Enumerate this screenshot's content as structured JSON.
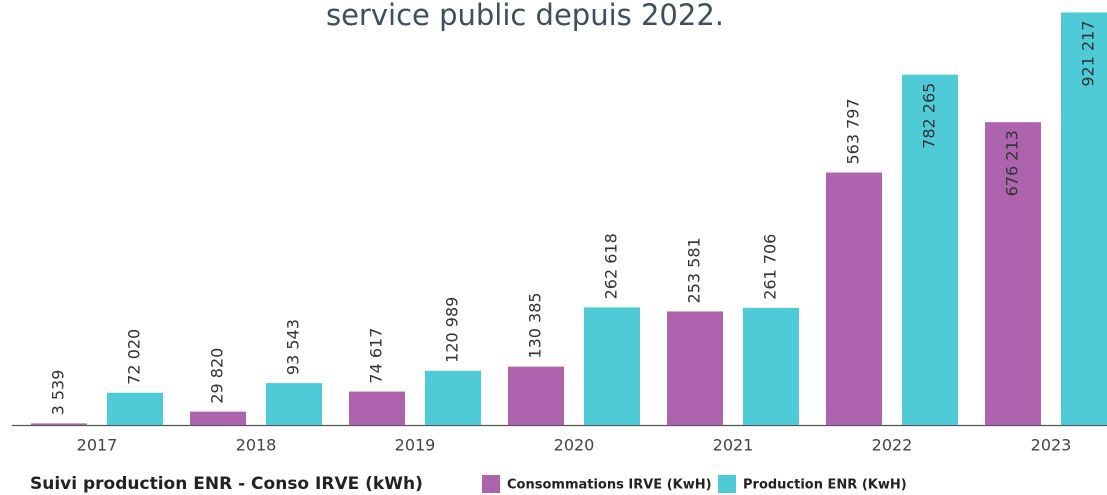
{
  "chart_data": {
    "type": "bar",
    "title": "service public depuis 2022.",
    "legend_title": "Suivi production ENR - Conso IRVE (kWh)",
    "categories": [
      "2017",
      "2018",
      "2019",
      "2020",
      "2021",
      "2022",
      "2023"
    ],
    "series": [
      {
        "name": "Consommations IRVE (KwH)",
        "color": "#ad63ad",
        "values": [
          3539,
          29820,
          74617,
          130385,
          253581,
          563797,
          676213
        ],
        "value_labels": [
          "3 539",
          "29 820",
          "74 617",
          "130 385",
          "253 581",
          "563 797",
          "676 213"
        ]
      },
      {
        "name": "Production ENR (KwH)",
        "color": "#4ecbd6",
        "values": [
          72020,
          93543,
          120989,
          262618,
          261706,
          782265,
          921217
        ],
        "value_labels": [
          "72 020",
          "93 543",
          "120 989",
          "262 618",
          "261 706",
          "782 265",
          "921 217"
        ]
      }
    ],
    "ylim": [
      0,
      920000
    ],
    "legend": "bottom"
  }
}
